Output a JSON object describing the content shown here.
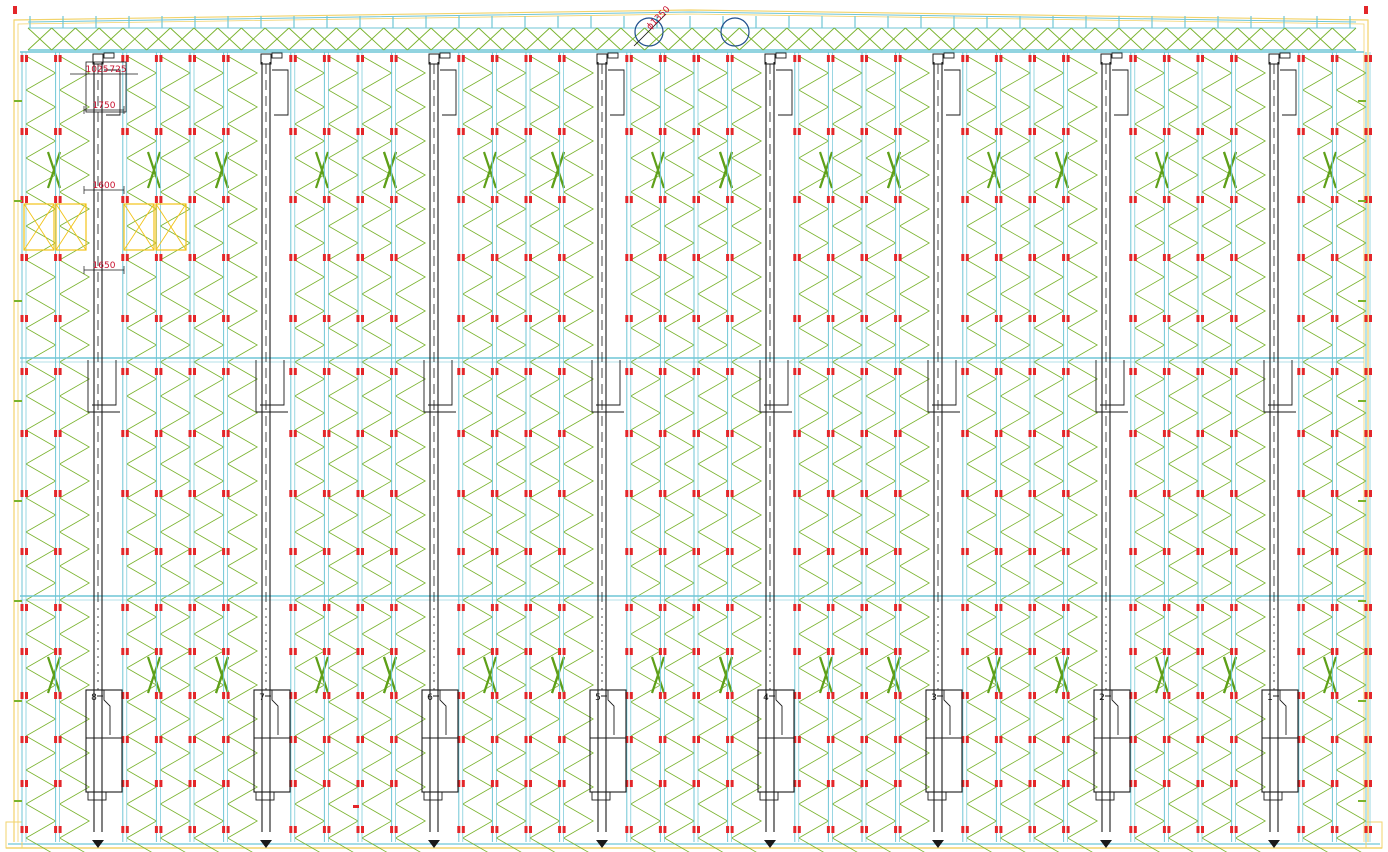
{
  "drawing": {
    "colors": {
      "background": "#ffffff",
      "outline": "#f2d36b",
      "column": "#6fc6d6",
      "bracing": "#7ab32e",
      "bracing_heavy": "#5fa019",
      "beam_marker": "#e3262a",
      "crane": "#1a1a1a",
      "dimension": "#c8102e",
      "ventilator": "#1f4e8c",
      "highlight_panel": "#f2c318"
    },
    "dimensions": {
      "top_left": "1025",
      "top_right": "725",
      "width_upper": "1750",
      "width_mid": "1600",
      "width_lower": "1650",
      "ventilator_label": "ϕ1350"
    },
    "aisles": [
      "8",
      "7",
      "6",
      "5",
      "4",
      "3",
      "2",
      "1"
    ],
    "icons": {
      "ventilator": "circle-ventilator-icon",
      "stacker_crane": "stacker-crane-icon",
      "roof_truss": "roof-truss-icon",
      "x_bracing": "x-bracing-icon"
    }
  }
}
